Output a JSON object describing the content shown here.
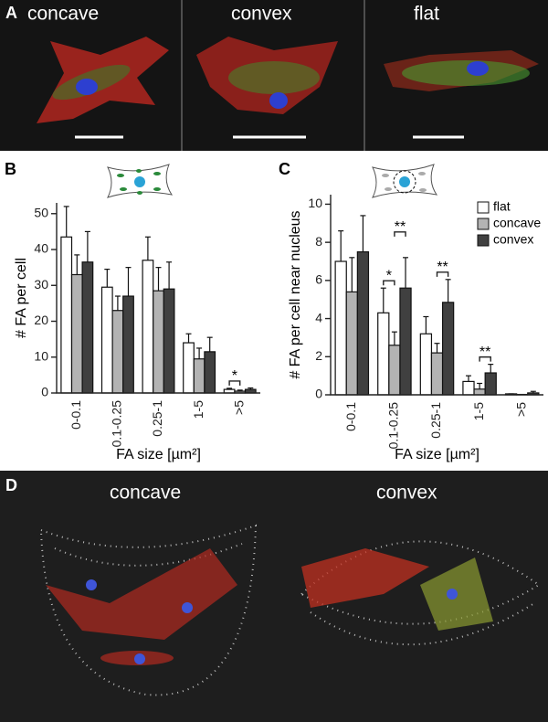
{
  "figure": {
    "panels": [
      {
        "label": "A",
        "images": [
          "concave",
          "convex",
          "flat"
        ]
      },
      {
        "label": "D",
        "images": [
          "concave",
          "convex"
        ]
      }
    ]
  },
  "chart_data": [
    {
      "type": "bar",
      "label": "B",
      "ylabel": "# FA per cell",
      "xlabel": "FA size [µm²]",
      "categories": [
        "0-0.1",
        "0.1-0.25",
        "0.25-1",
        "1-5",
        ">5"
      ],
      "series": [
        {
          "name": "flat",
          "color": "#ffffff",
          "values": [
            43.5,
            29.5,
            37,
            14,
            1
          ],
          "errors": [
            8.5,
            5,
            6.5,
            2.5,
            0.3
          ]
        },
        {
          "name": "concave",
          "color": "#b3b3b3",
          "values": [
            33,
            23,
            28.5,
            9.5,
            0.5
          ],
          "errors": [
            5.5,
            4,
            6.5,
            3,
            0.3
          ]
        },
        {
          "name": "convex",
          "color": "#404040",
          "values": [
            36.5,
            27,
            29,
            11.5,
            1
          ],
          "errors": [
            8.5,
            8,
            7.5,
            4,
            0.4
          ]
        }
      ],
      "ylim": [
        0,
        53
      ],
      "yticks": [
        0,
        10,
        20,
        30,
        40,
        50
      ],
      "annotations": [
        "*"
      ]
    },
    {
      "type": "bar",
      "label": "C",
      "ylabel": "# FA per cell near nucleus",
      "xlabel": "FA size [µm²]",
      "categories": [
        "0-0.1",
        "0.1-0.25",
        "0.25-1",
        "1-5",
        ">5"
      ],
      "series": [
        {
          "name": "flat",
          "color": "#ffffff",
          "values": [
            7.0,
            4.3,
            3.2,
            0.7,
            0.05
          ],
          "errors": [
            1.6,
            1.3,
            0.9,
            0.3,
            0
          ]
        },
        {
          "name": "concave",
          "color": "#b3b3b3",
          "values": [
            5.4,
            2.6,
            2.2,
            0.3,
            0.02
          ],
          "errors": [
            1.8,
            0.7,
            0.5,
            0.3,
            0
          ]
        },
        {
          "name": "convex",
          "color": "#404040",
          "values": [
            7.5,
            5.6,
            4.85,
            1.15,
            0.1
          ],
          "errors": [
            1.9,
            1.6,
            1.2,
            0.45,
            0.08
          ]
        }
      ],
      "ylim": [
        0,
        10.5
      ],
      "yticks": [
        0,
        2,
        4,
        6,
        8,
        10
      ],
      "legend": "upper right",
      "annotations": [
        "*",
        "**",
        "**",
        "**"
      ]
    }
  ]
}
